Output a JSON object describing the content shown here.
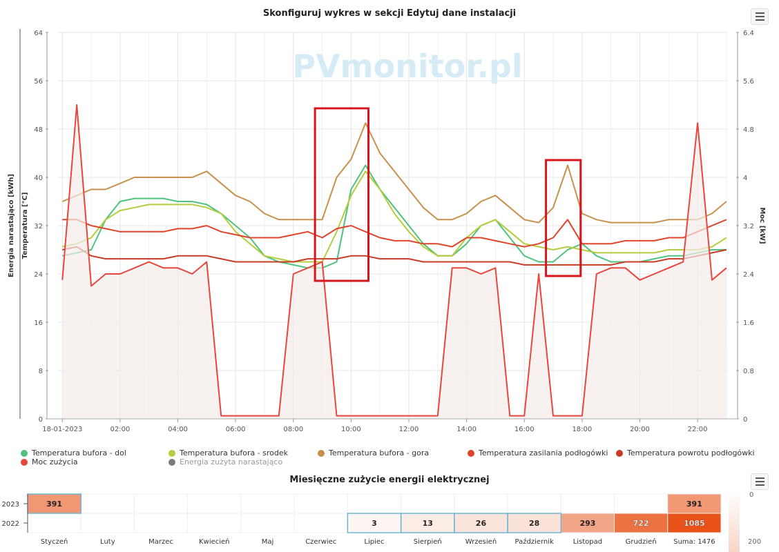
{
  "top_chart": {
    "title": "Skonfiguruj wykres w sekcji Edytuj dane instalacji",
    "watermark": "PVmonitor.pl",
    "ylabel_left_1": "Energia narastająco [kWh]",
    "ylabel_left_2": "Temperatura [°C]",
    "ylabel_right": "Moc [kW]",
    "left_ticks": [
      "0",
      "8",
      "16",
      "24",
      "32",
      "40",
      "48",
      "56",
      "64"
    ],
    "right_ticks": [
      "0",
      "0.8",
      "1.6",
      "2.4",
      "3.2",
      "4",
      "4.8",
      "5.6",
      "6.4"
    ],
    "x_ticks": [
      "18-01-2023",
      "02:00",
      "04:00",
      "06:00",
      "08:00",
      "10:00",
      "12:00",
      "14:00",
      "16:00",
      "18:00",
      "20:00",
      "22:00"
    ],
    "legend": [
      {
        "label": "Temperatura bufora - dol",
        "color": "#4fc27d"
      },
      {
        "label": "Temperatura bufora - srodek",
        "color": "#b5cc3c"
      },
      {
        "label": "Temperatura bufora - gora",
        "color": "#c8904a"
      },
      {
        "label": "Temperatura zasilania podłogówki",
        "color": "#e0442a"
      },
      {
        "label": "Temperatura powrotu podłogówki",
        "color": "#c93b25"
      },
      {
        "label": "Moc zużycia",
        "color": "#e8453c"
      },
      {
        "label": "Energia zużyta narastająco",
        "color": "#7a7a7a"
      }
    ]
  },
  "chart_data": [
    {
      "type": "line",
      "title": "Skonfiguruj wykres w sekcji Edytuj dane instalacji",
      "xlabel": "",
      "ylabel": "Temperatura [°C]",
      "y2label": "Moc [kW]",
      "xlim_hours": [
        0,
        23
      ],
      "ylim": [
        0,
        64
      ],
      "y2lim": [
        0,
        6.4
      ],
      "x_hours": [
        0,
        0.5,
        1,
        1.5,
        2,
        2.5,
        3,
        3.5,
        4,
        4.5,
        5,
        5.5,
        6,
        6.5,
        7,
        7.5,
        8,
        8.5,
        9,
        9.5,
        10,
        10.5,
        11,
        11.5,
        12,
        12.5,
        13,
        13.5,
        14,
        14.5,
        15,
        15.5,
        16,
        16.5,
        17,
        17.5,
        18,
        18.5,
        19,
        19.5,
        20,
        20.5,
        21,
        21.5,
        22,
        22.5,
        23
      ],
      "series": [
        {
          "name": "Temperatura bufora - dol",
          "axis": "left",
          "values": [
            27,
            27.5,
            28,
            33,
            36,
            36.5,
            36.5,
            36.5,
            36,
            36,
            35.5,
            34,
            32,
            30,
            27,
            26,
            25.5,
            25,
            25,
            26,
            38,
            42,
            38,
            35,
            32,
            29,
            27,
            27,
            29,
            32,
            33,
            30,
            27,
            26,
            26,
            28,
            29,
            27,
            26,
            26,
            26,
            26.5,
            27,
            27,
            27.5,
            28,
            28
          ]
        },
        {
          "name": "Temperatura bufora - srodek",
          "axis": "left",
          "values": [
            28.5,
            29,
            30,
            33,
            34.5,
            35,
            35.5,
            35.5,
            35.5,
            35.5,
            35,
            34,
            31,
            29,
            27,
            26.5,
            26,
            26,
            26,
            31,
            37,
            41,
            38,
            34,
            31,
            28.5,
            27,
            27,
            30,
            32,
            33,
            31,
            29,
            28.5,
            28,
            28.5,
            28,
            27.5,
            27.5,
            27.5,
            27.5,
            27.5,
            28,
            28,
            28,
            28.5,
            30
          ]
        },
        {
          "name": "Temperatura bufora - gora",
          "axis": "left",
          "values": [
            36,
            37,
            38,
            38,
            39,
            40,
            40,
            40,
            40,
            40,
            41,
            39,
            37,
            36,
            34,
            33,
            33,
            33,
            33,
            40,
            43,
            49,
            44,
            41,
            38,
            35,
            33,
            33,
            34,
            36,
            37,
            35,
            33,
            32.5,
            35,
            42,
            34,
            33,
            32.5,
            32.5,
            32.5,
            32.5,
            33,
            33,
            33,
            34,
            36
          ]
        },
        {
          "name": "Temperatura zasilania podłogówki",
          "axis": "left",
          "values": [
            33,
            33,
            32,
            31.5,
            31,
            31,
            31,
            31,
            31.5,
            31.5,
            32,
            31,
            30.5,
            30,
            30,
            30,
            30.5,
            31,
            30,
            31.5,
            32,
            31,
            30,
            29.5,
            29.5,
            29,
            29,
            28.5,
            30,
            30,
            29.5,
            29,
            28.5,
            29,
            30,
            33,
            29,
            29,
            29,
            29.5,
            29.5,
            29.5,
            30,
            30,
            31,
            32,
            33
          ]
        },
        {
          "name": "Temperatura powrotu podłogówki",
          "axis": "left",
          "values": [
            28,
            28.5,
            27,
            26.5,
            26.5,
            26.5,
            26.5,
            26.5,
            27,
            27,
            27,
            26.5,
            26,
            26,
            26,
            26,
            26,
            26.5,
            26.5,
            26.5,
            27,
            27,
            26.5,
            26.5,
            26.5,
            26,
            26,
            26,
            26,
            26,
            26,
            26,
            25.5,
            25.5,
            25.5,
            25.5,
            25.5,
            25.5,
            25.5,
            26,
            26,
            26,
            26.5,
            26.5,
            27,
            27.5,
            28
          ]
        },
        {
          "name": "Moc zużycia",
          "axis": "right",
          "values": [
            2.3,
            5.2,
            2.2,
            2.4,
            2.4,
            2.5,
            2.6,
            2.5,
            2.5,
            2.4,
            2.6,
            0.05,
            0.05,
            0.05,
            0.05,
            0.05,
            2.4,
            2.5,
            2.6,
            0.05,
            0.05,
            0.05,
            0.05,
            0.05,
            0.05,
            0.05,
            0.05,
            2.5,
            2.5,
            2.4,
            2.5,
            0.05,
            0.05,
            2.4,
            0.05,
            0.05,
            0.05,
            2.4,
            2.5,
            2.5,
            2.3,
            2.4,
            2.5,
            2.6,
            4.9,
            2.3,
            2.5
          ]
        }
      ],
      "annotations": [
        "red box 08:45–10:35",
        "red box 16:45–17:55"
      ]
    },
    {
      "type": "heatmap",
      "title": "Miesięczne zużycie energii elektrycznej",
      "rows": [
        "2023",
        "2022"
      ],
      "columns": [
        "Styczeń",
        "Luty",
        "Marzec",
        "Kwiecień",
        "Maj",
        "Czerwiec",
        "Lipiec",
        "Sierpień",
        "Wrzesień",
        "Październik",
        "Listopad",
        "Grudzień",
        "Suma: 1476"
      ],
      "values": [
        [
          391,
          null,
          null,
          null,
          null,
          null,
          null,
          null,
          null,
          null,
          null,
          null,
          391
        ],
        [
          null,
          null,
          null,
          null,
          null,
          null,
          3,
          13,
          26,
          28,
          293,
          722,
          1085
        ]
      ],
      "color_scale_label": "200"
    }
  ],
  "bottom_chart": {
    "title": "Miesięczne zużycie energii elektrycznej",
    "rows": [
      "2023",
      "2022"
    ],
    "columns": [
      "Styczeń",
      "Luty",
      "Marzec",
      "Kwiecień",
      "Maj",
      "Czerwiec",
      "Lipiec",
      "Sierpień",
      "Wrzesień",
      "Październik",
      "Listopad",
      "Grudzień",
      "Suma: 1476"
    ],
    "values": [
      [
        "391",
        "",
        "",
        "",
        "",
        "",
        "",
        "",
        "",
        "",
        "",
        "",
        "391"
      ],
      [
        "",
        "",
        "",
        "",
        "",
        "",
        "3",
        "13",
        "26",
        "28",
        "293",
        "722",
        "1085"
      ]
    ],
    "scale_top": "0",
    "scale_label": "200"
  }
}
